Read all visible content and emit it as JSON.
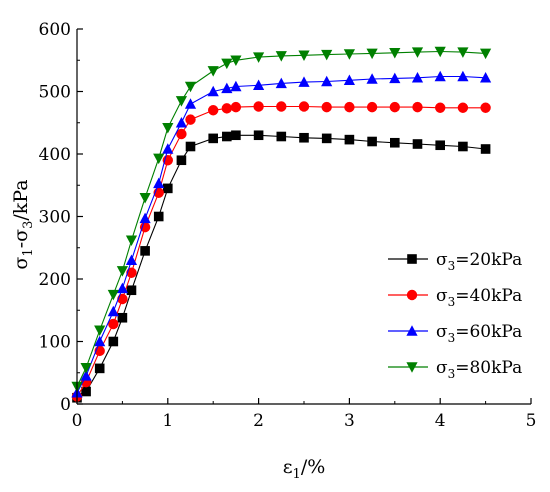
{
  "chart_data": {
    "type": "line",
    "title": "",
    "xlabel_main": "ε",
    "xlabel_sub": "1",
    "xlabel_tail": "/%",
    "ylabel_prefix": "σ",
    "ylabel_sub1": "1",
    "ylabel_mid": "-σ",
    "ylabel_sub2": "3",
    "ylabel_tail": "/kPa",
    "xlim": [
      0,
      5
    ],
    "ylim": [
      0,
      600
    ],
    "xticks": [
      0,
      1,
      2,
      3,
      4,
      5
    ],
    "yticks": [
      0,
      100,
      200,
      300,
      400,
      500,
      600
    ],
    "grid": false,
    "legend_position": "right",
    "series": [
      {
        "name_prefix": "σ",
        "name_sub": "3",
        "name_tail": "=20kPa",
        "color": "#000000",
        "marker": "square",
        "points": [
          [
            0,
            10
          ],
          [
            0.1,
            20
          ],
          [
            0.25,
            57
          ],
          [
            0.4,
            100
          ],
          [
            0.5,
            138
          ],
          [
            0.6,
            182
          ],
          [
            0.75,
            245
          ],
          [
            0.9,
            300
          ],
          [
            1.0,
            345
          ],
          [
            1.15,
            390
          ],
          [
            1.25,
            412
          ],
          [
            1.5,
            425
          ],
          [
            1.65,
            428
          ],
          [
            1.75,
            430
          ],
          [
            2.0,
            430
          ],
          [
            2.25,
            428
          ],
          [
            2.5,
            426
          ],
          [
            2.75,
            425
          ],
          [
            3.0,
            423
          ],
          [
            3.25,
            420
          ],
          [
            3.5,
            418
          ],
          [
            3.75,
            416
          ],
          [
            4.0,
            414
          ],
          [
            4.25,
            412
          ],
          [
            4.5,
            408
          ]
        ]
      },
      {
        "name_prefix": "σ",
        "name_sub": "3",
        "name_tail": "=40kPa",
        "color": "#ff0000",
        "marker": "circle",
        "points": [
          [
            0,
            12
          ],
          [
            0.1,
            35
          ],
          [
            0.25,
            85
          ],
          [
            0.4,
            128
          ],
          [
            0.5,
            168
          ],
          [
            0.6,
            210
          ],
          [
            0.75,
            283
          ],
          [
            0.9,
            338
          ],
          [
            1.0,
            390
          ],
          [
            1.15,
            432
          ],
          [
            1.25,
            455
          ],
          [
            1.5,
            470
          ],
          [
            1.65,
            473
          ],
          [
            1.75,
            475
          ],
          [
            2.0,
            476
          ],
          [
            2.25,
            476
          ],
          [
            2.5,
            476
          ],
          [
            2.75,
            475
          ],
          [
            3.0,
            475
          ],
          [
            3.25,
            475
          ],
          [
            3.5,
            475
          ],
          [
            3.75,
            475
          ],
          [
            4.0,
            474
          ],
          [
            4.25,
            474
          ],
          [
            4.5,
            474
          ]
        ]
      },
      {
        "name_prefix": "σ",
        "name_sub": "3",
        "name_tail": "=60kPa",
        "color": "#0000ff",
        "marker": "triangle-up",
        "points": [
          [
            0,
            18
          ],
          [
            0.1,
            45
          ],
          [
            0.25,
            100
          ],
          [
            0.4,
            148
          ],
          [
            0.5,
            185
          ],
          [
            0.6,
            230
          ],
          [
            0.75,
            297
          ],
          [
            0.9,
            353
          ],
          [
            1.0,
            408
          ],
          [
            1.15,
            450
          ],
          [
            1.25,
            480
          ],
          [
            1.5,
            500
          ],
          [
            1.65,
            505
          ],
          [
            1.75,
            508
          ],
          [
            2.0,
            510
          ],
          [
            2.25,
            513
          ],
          [
            2.5,
            515
          ],
          [
            2.75,
            516
          ],
          [
            3.0,
            518
          ],
          [
            3.25,
            520
          ],
          [
            3.5,
            521
          ],
          [
            3.75,
            522
          ],
          [
            4.0,
            524
          ],
          [
            4.25,
            524
          ],
          [
            4.5,
            522
          ]
        ]
      },
      {
        "name_prefix": "σ",
        "name_sub": "3",
        "name_tail": "=80kPa",
        "color": "#008000",
        "marker": "triangle-down",
        "points": [
          [
            0,
            28
          ],
          [
            0.1,
            58
          ],
          [
            0.25,
            118
          ],
          [
            0.4,
            175
          ],
          [
            0.5,
            213
          ],
          [
            0.6,
            262
          ],
          [
            0.75,
            330
          ],
          [
            0.9,
            393
          ],
          [
            1.0,
            442
          ],
          [
            1.15,
            485
          ],
          [
            1.25,
            508
          ],
          [
            1.5,
            533
          ],
          [
            1.65,
            545
          ],
          [
            1.75,
            550
          ],
          [
            2.0,
            555
          ],
          [
            2.25,
            557
          ],
          [
            2.5,
            558
          ],
          [
            2.75,
            559
          ],
          [
            3.0,
            560
          ],
          [
            3.25,
            561
          ],
          [
            3.5,
            562
          ],
          [
            3.75,
            563
          ],
          [
            4.0,
            564
          ],
          [
            4.25,
            563
          ],
          [
            4.5,
            561
          ]
        ]
      }
    ]
  }
}
